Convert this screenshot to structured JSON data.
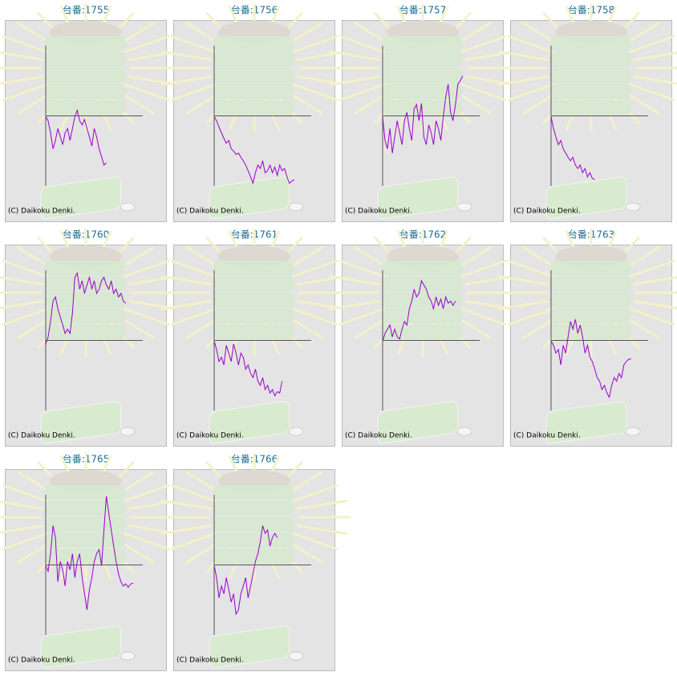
{
  "chart_data": [
    {
      "type": "line",
      "title": "台番:1755",
      "copyright": "(C) Daikoku Denki.",
      "color": "#9900cc",
      "xlim": [
        0,
        40
      ],
      "ylim": [
        -100,
        100
      ],
      "values": [
        -1,
        -7,
        -24,
        -47,
        -35,
        -18,
        -30,
        -41,
        -24,
        -18,
        -35,
        -18,
        -1,
        8,
        -7,
        -13,
        -5,
        -18,
        -30,
        -43,
        -18,
        -30,
        -47,
        -58,
        -70,
        -67
      ]
    },
    {
      "type": "line",
      "title": "台番:1756",
      "copyright": "(C) Daikoku Denki.",
      "color": "#9900cc",
      "xlim": [
        0,
        40
      ],
      "ylim": [
        -100,
        100
      ],
      "values": [
        -1,
        -7,
        -16,
        -24,
        -32,
        -39,
        -35,
        -47,
        -50,
        -55,
        -53,
        -59,
        -64,
        -70,
        -78,
        -87,
        -96,
        -81,
        -70,
        -75,
        -64,
        -81,
        -78,
        -70,
        -81,
        -73,
        -85,
        -70,
        -78,
        -75,
        -87,
        -96,
        -93,
        -91
      ]
    },
    {
      "type": "line",
      "title": "台番:1757",
      "copyright": "(C) Daikoku Denki.",
      "color": "#9900cc",
      "xlim": [
        0,
        40
      ],
      "ylim": [
        -100,
        100
      ],
      "values": [
        -1,
        -35,
        -47,
        -18,
        -53,
        -30,
        -7,
        -24,
        -41,
        -7,
        5,
        -18,
        -35,
        10,
        16,
        -7,
        18,
        -30,
        -41,
        -13,
        -24,
        -41,
        -7,
        -18,
        -35,
        -1,
        27,
        45,
        5,
        -7,
        16,
        45,
        50,
        57
      ]
    },
    {
      "type": "line",
      "title": "台番:1758",
      "copyright": "(C) Daikoku Denki.",
      "color": "#9900cc",
      "xlim": [
        0,
        40
      ],
      "ylim": [
        -100,
        100
      ],
      "values": [
        -1,
        -18,
        -30,
        -41,
        -35,
        -47,
        -53,
        -59,
        -64,
        -59,
        -70,
        -75,
        -70,
        -81,
        -75,
        -87,
        -81,
        -89,
        -91
      ]
    },
    {
      "type": "line",
      "title": "台番:1760",
      "copyright": "(C) Daikoku Denki.",
      "color": "#9900cc",
      "xlim": [
        0,
        40
      ],
      "ylim": [
        -100,
        100
      ],
      "values": [
        -5,
        5,
        27,
        56,
        62,
        45,
        33,
        22,
        10,
        16,
        10,
        39,
        90,
        96,
        73,
        85,
        67,
        79,
        90,
        73,
        85,
        67,
        73,
        85,
        90,
        79,
        73,
        85,
        67,
        73,
        62,
        67,
        56,
        53
      ]
    },
    {
      "type": "line",
      "title": "台番:1761",
      "copyright": "(C) Daikoku Denki.",
      "color": "#9900cc",
      "xlim": [
        0,
        40
      ],
      "ylim": [
        -100,
        100
      ],
      "values": [
        -1,
        -13,
        -30,
        -24,
        -35,
        -7,
        -18,
        -30,
        -5,
        -18,
        -35,
        -18,
        -24,
        -41,
        -35,
        -47,
        -53,
        -41,
        -58,
        -64,
        -53,
        -70,
        -64,
        -75,
        -70,
        -79,
        -73,
        -75,
        -58
      ]
    },
    {
      "type": "line",
      "title": "台番:1762",
      "copyright": "(C) Daikoku Denki.",
      "color": "#9900cc",
      "xlim": [
        0,
        40
      ],
      "ylim": [
        -100,
        100
      ],
      "values": [
        -1,
        10,
        16,
        22,
        5,
        16,
        5,
        2,
        16,
        27,
        22,
        45,
        56,
        73,
        62,
        67,
        85,
        79,
        73,
        62,
        56,
        45,
        62,
        50,
        59,
        45,
        62,
        53,
        56,
        50,
        56
      ]
    },
    {
      "type": "line",
      "title": "台番:1763",
      "copyright": "(C) Daikoku Denki.",
      "color": "#9900cc",
      "xlim": [
        0,
        40
      ],
      "ylim": [
        -100,
        100
      ],
      "values": [
        -1,
        -7,
        -18,
        -13,
        -35,
        -7,
        -18,
        5,
        27,
        16,
        30,
        10,
        22,
        5,
        -18,
        -7,
        -24,
        -30,
        -41,
        -53,
        -58,
        -70,
        -64,
        -75,
        -81,
        -64,
        -53,
        -58,
        -47,
        -53,
        -35,
        -30,
        -27,
        -26
      ]
    },
    {
      "type": "line",
      "title": "台番:1765",
      "copyright": "(C) Daikoku Denki.",
      "color": "#9900cc",
      "xlim": [
        0,
        40
      ],
      "ylim": [
        -100,
        100
      ],
      "values": [
        -1,
        -9,
        16,
        56,
        39,
        -24,
        5,
        -7,
        -30,
        5,
        -7,
        16,
        -18,
        5,
        16,
        -18,
        -41,
        -64,
        -35,
        -18,
        5,
        16,
        22,
        -1,
        50,
        98,
        73,
        50,
        27,
        5,
        -13,
        -24,
        -30,
        -27,
        -32,
        -27,
        -26
      ]
    },
    {
      "type": "line",
      "title": "台番:1766",
      "copyright": "(C) Daikoku Denki.",
      "color": "#9900cc",
      "xlim": [
        0,
        40
      ],
      "ylim": [
        -100,
        100
      ],
      "values": [
        -1,
        -18,
        -47,
        -30,
        -41,
        -18,
        -35,
        -53,
        -41,
        -70,
        -64,
        -41,
        -30,
        -18,
        -47,
        -30,
        -13,
        5,
        16,
        33,
        56,
        45,
        50,
        27,
        39,
        45,
        39
      ]
    }
  ]
}
